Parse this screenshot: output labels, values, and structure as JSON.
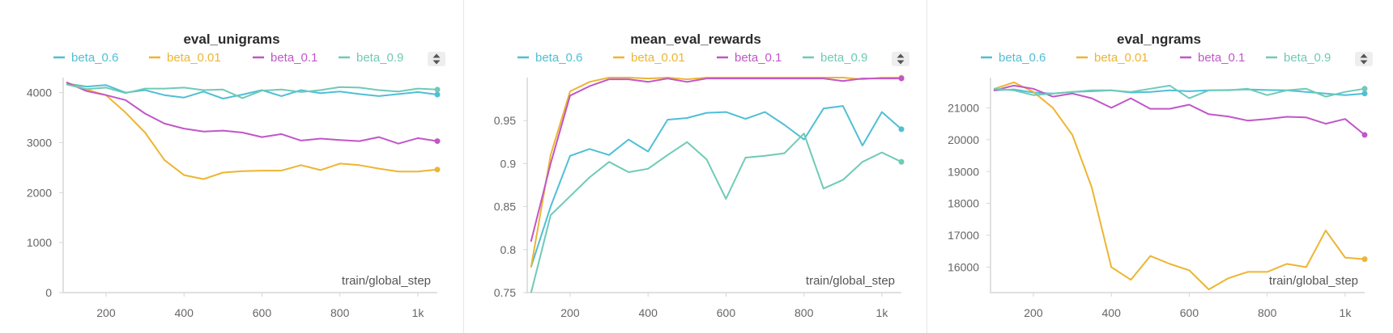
{
  "colors": {
    "beta_0.6": "#4fbfd6",
    "beta_0.01": "#edb532",
    "beta_0.1": "#c156c8",
    "beta_0.9": "#6fcab6"
  },
  "legend_control_icon": "sort-updown-icon",
  "chart_data": [
    {
      "type": "line",
      "title": "eval_unigrams",
      "xlabel": "train/global_step",
      "ylabel": "",
      "legend": [
        "beta_0.6",
        "beta_0.01",
        "beta_0.1",
        "beta_0.9"
      ],
      "legend_position": "top",
      "xlim": [
        90,
        1050
      ],
      "ylim": [
        0,
        4300
      ],
      "xticks": [
        200,
        400,
        600,
        800,
        1000
      ],
      "xtick_labels": [
        "200",
        "400",
        "600",
        "800",
        "1k"
      ],
      "yticks": [
        0,
        1000,
        2000,
        3000,
        4000
      ],
      "ytick_labels": [
        "0",
        "1000",
        "2000",
        "3000",
        "4000"
      ],
      "x": [
        100,
        150,
        200,
        250,
        300,
        350,
        400,
        450,
        500,
        550,
        600,
        650,
        700,
        750,
        800,
        850,
        900,
        950,
        1000,
        1050
      ],
      "series": [
        {
          "name": "beta_0.6",
          "values": [
            4180,
            4120,
            4150,
            4000,
            4050,
            3950,
            3900,
            4020,
            3880,
            3960,
            4050,
            3930,
            4050,
            3990,
            4020,
            3970,
            3930,
            3970,
            4010,
            3960
          ]
        },
        {
          "name": "beta_0.01",
          "values": [
            4200,
            4060,
            3950,
            3600,
            3200,
            2650,
            2350,
            2270,
            2400,
            2430,
            2440,
            2440,
            2550,
            2450,
            2580,
            2550,
            2480,
            2420,
            2420,
            2460
          ]
        },
        {
          "name": "beta_0.1",
          "values": [
            4200,
            4030,
            3950,
            3850,
            3580,
            3380,
            3280,
            3220,
            3240,
            3200,
            3110,
            3170,
            3040,
            3080,
            3050,
            3030,
            3110,
            2980,
            3090,
            3030
          ]
        },
        {
          "name": "beta_0.9",
          "values": [
            4160,
            4070,
            4100,
            3990,
            4080,
            4080,
            4100,
            4050,
            4060,
            3890,
            4040,
            4060,
            4010,
            4050,
            4110,
            4100,
            4050,
            4020,
            4080,
            4060
          ]
        }
      ]
    },
    {
      "type": "line",
      "title": "mean_eval_rewards",
      "xlabel": "train/global_step",
      "ylabel": "",
      "legend": [
        "beta_0.6",
        "beta_0.01",
        "beta_0.1",
        "beta_0.9"
      ],
      "legend_position": "top",
      "xlim": [
        90,
        1050
      ],
      "ylim": [
        0.75,
        1.0
      ],
      "xticks": [
        200,
        400,
        600,
        800,
        1000
      ],
      "xtick_labels": [
        "200",
        "400",
        "600",
        "800",
        "1k"
      ],
      "yticks": [
        0.75,
        0.8,
        0.85,
        0.9,
        0.95
      ],
      "ytick_labels": [
        "0.75",
        "0.8",
        "0.85",
        "0.9",
        "0.95"
      ],
      "x": [
        100,
        150,
        200,
        250,
        300,
        350,
        400,
        450,
        500,
        550,
        600,
        650,
        700,
        750,
        800,
        850,
        900,
        950,
        1000,
        1050
      ],
      "series": [
        {
          "name": "beta_0.6",
          "values": [
            0.78,
            0.85,
            0.909,
            0.917,
            0.91,
            0.928,
            0.914,
            0.951,
            0.953,
            0.959,
            0.96,
            0.952,
            0.96,
            0.945,
            0.928,
            0.964,
            0.967,
            0.921,
            0.96,
            0.94
          ]
        },
        {
          "name": "beta_0.01",
          "values": [
            0.78,
            0.91,
            0.984,
            0.995,
            1.0,
            1.0,
            0.999,
            1.0,
            0.998,
            1.0,
            1.0,
            1.0,
            1.0,
            1.0,
            1.0,
            1.0,
            1.0,
            0.998,
            1.0,
            1.0
          ]
        },
        {
          "name": "beta_0.1",
          "values": [
            0.81,
            0.9,
            0.979,
            0.99,
            0.998,
            0.998,
            0.995,
            0.999,
            0.995,
            0.999,
            0.999,
            0.999,
            0.999,
            0.999,
            0.999,
            0.999,
            0.996,
            0.999,
            0.999,
            0.999
          ]
        },
        {
          "name": "beta_0.9",
          "values": [
            0.75,
            0.84,
            0.862,
            0.884,
            0.902,
            0.89,
            0.894,
            0.91,
            0.925,
            0.905,
            0.859,
            0.907,
            0.909,
            0.912,
            0.935,
            0.871,
            0.881,
            0.902,
            0.913,
            0.902
          ]
        }
      ]
    },
    {
      "type": "line",
      "title": "eval_ngrams",
      "xlabel": "train/global_step",
      "ylabel": "",
      "legend": [
        "beta_0.6",
        "beta_0.01",
        "beta_0.1",
        "beta_0.9"
      ],
      "legend_position": "top",
      "xlim": [
        90,
        1050
      ],
      "ylim": [
        15200,
        21950
      ],
      "xticks": [
        200,
        400,
        600,
        800,
        1000
      ],
      "xtick_labels": [
        "200",
        "400",
        "600",
        "800",
        "1k"
      ],
      "yticks": [
        16000,
        17000,
        18000,
        19000,
        20000,
        21000
      ],
      "ytick_labels": [
        "16000",
        "17000",
        "18000",
        "19000",
        "20000",
        "21000"
      ],
      "x": [
        100,
        150,
        200,
        250,
        300,
        350,
        400,
        450,
        500,
        550,
        600,
        650,
        700,
        750,
        800,
        850,
        900,
        950,
        1000,
        1050
      ],
      "series": [
        {
          "name": "beta_0.6",
          "values": [
            21550,
            21580,
            21480,
            21450,
            21500,
            21520,
            21550,
            21480,
            21500,
            21550,
            21520,
            21550,
            21560,
            21580,
            21560,
            21550,
            21500,
            21450,
            21400,
            21450
          ]
        },
        {
          "name": "beta_0.01",
          "values": [
            21600,
            21800,
            21500,
            21000,
            20150,
            18500,
            16000,
            15600,
            16350,
            16100,
            15900,
            15300,
            15650,
            15850,
            15850,
            16100,
            16000,
            17150,
            16300,
            16250
          ]
        },
        {
          "name": "beta_0.1",
          "values": [
            21550,
            21700,
            21600,
            21350,
            21450,
            21300,
            21000,
            21300,
            20970,
            20970,
            21100,
            20800,
            20730,
            20600,
            20650,
            20720,
            20700,
            20500,
            20650,
            20150
          ]
        },
        {
          "name": "beta_0.9",
          "values": [
            21600,
            21550,
            21400,
            21450,
            21500,
            21550,
            21550,
            21500,
            21600,
            21700,
            21300,
            21550,
            21550,
            21600,
            21400,
            21550,
            21600,
            21350,
            21500,
            21600
          ]
        }
      ]
    }
  ]
}
